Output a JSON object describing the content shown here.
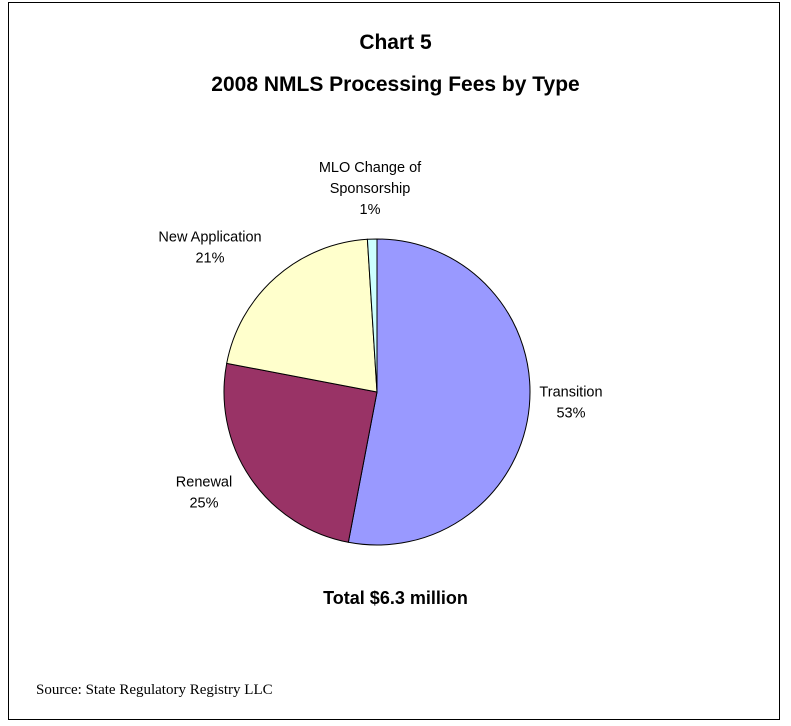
{
  "chart_data": {
    "type": "pie",
    "title": "Chart 5",
    "subtitle": "2008 NMLS Processing Fees by Type",
    "slices": [
      {
        "label": "Transition",
        "value": 53,
        "value_label": "53%",
        "color": "#9999ff"
      },
      {
        "label": "Renewal",
        "value": 25,
        "value_label": "25%",
        "color": "#993366"
      },
      {
        "label": "New Application",
        "value": 21,
        "value_label": "21%",
        "color": "#ffffcc"
      },
      {
        "label": "MLO Change of Sponsorship",
        "value": 1,
        "value_label": "1%",
        "color": "#ccffff",
        "label_lines": [
          "MLO Change of",
          "Sponsorship"
        ]
      }
    ],
    "total_note": "Total $6.3 million"
  },
  "source": "Source: State Regulatory Registry LLC"
}
